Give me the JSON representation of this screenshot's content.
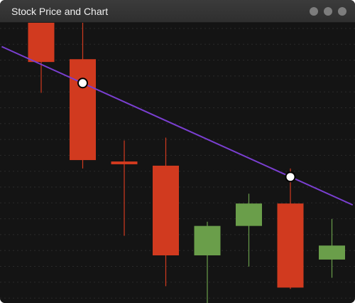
{
  "window": {
    "title": "Stock Price and Chart",
    "controls": [
      "window-dot-icon",
      "window-dot-icon",
      "window-dot-icon"
    ]
  },
  "colors": {
    "background": "#141414",
    "gridline": "#2a2a2a",
    "bearish": "#d13a1f",
    "bullish": "#6a9e4a",
    "trendline": "#7a3fd1",
    "marker_fill": "#ffffff",
    "marker_stroke": "#000000"
  },
  "chart_data": {
    "type": "candlestick",
    "title": "",
    "xlabel": "",
    "ylabel": "",
    "grid": true,
    "ylim": [
      0,
      100
    ],
    "candles": [
      {
        "open": 100,
        "high": 100,
        "low": 75,
        "close": 86
      },
      {
        "open": 87,
        "high": 100,
        "low": 48,
        "close": 51
      },
      {
        "open": 50.5,
        "high": 58,
        "low": 24,
        "close": 49.5
      },
      {
        "open": 49,
        "high": 59,
        "low": 6,
        "close": 17
      },
      {
        "open": 17,
        "high": 29,
        "low": 0,
        "close": 27.5
      },
      {
        "open": 27.5,
        "high": 39,
        "low": 13,
        "close": 35.5
      },
      {
        "open": 35.5,
        "high": 48,
        "low": 5,
        "close": 5.5
      },
      {
        "open": 15.5,
        "high": 30,
        "low": 9,
        "close": 20.5
      }
    ],
    "trendline": {
      "x": [
        -0.95,
        7.5
      ],
      "y": [
        91.5,
        35
      ]
    },
    "markers": [
      {
        "x": 1.0,
        "y": 78.5
      },
      {
        "x": 6.0,
        "y": 45
      }
    ]
  }
}
